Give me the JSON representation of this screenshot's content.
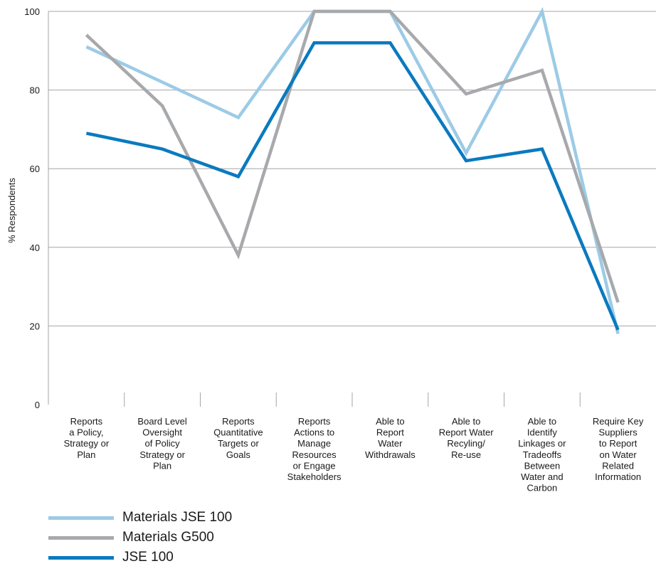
{
  "chart_data": {
    "type": "line",
    "title": "",
    "ylabel": "% Respondents",
    "xlabel": "",
    "ylim": [
      0,
      100
    ],
    "yticks": [
      0,
      20,
      40,
      60,
      80,
      100
    ],
    "grid": true,
    "legend_position": "bottom-left",
    "categories": [
      [
        "Reports",
        "a Policy,",
        "Strategy or",
        "Plan"
      ],
      [
        "Board Level",
        "Oversight",
        "of Policy",
        "Strategy or",
        "Plan"
      ],
      [
        "Reports",
        "Quantitative",
        "Targets or",
        "Goals"
      ],
      [
        "Reports",
        "Actions to",
        "Manage",
        "Resources",
        "or Engage",
        "Stakeholders"
      ],
      [
        "Able to",
        "Report",
        "Water",
        "Withdrawals"
      ],
      [
        "Able to",
        "Report Water",
        "Recyling/",
        "Re-use"
      ],
      [
        "Able to",
        "Identify",
        "Linkages or",
        "Tradeoffs",
        "Between",
        "Water and",
        "Carbon"
      ],
      [
        "Require Key",
        "Suppliers",
        "to Report",
        "on Water",
        "Related",
        "Information"
      ]
    ],
    "series": [
      {
        "name": "Materials JSE 100",
        "color": "#9ccbe6",
        "values": [
          91,
          82,
          73,
          100,
          100,
          64,
          100,
          18
        ]
      },
      {
        "name": "Materials G500",
        "color": "#a7a9ac",
        "values": [
          94,
          76,
          38,
          100,
          100,
          79,
          85,
          26
        ]
      },
      {
        "name": "JSE 100",
        "color": "#0a7abf",
        "values": [
          69,
          65,
          58,
          92,
          92,
          62,
          65,
          19
        ]
      }
    ]
  }
}
